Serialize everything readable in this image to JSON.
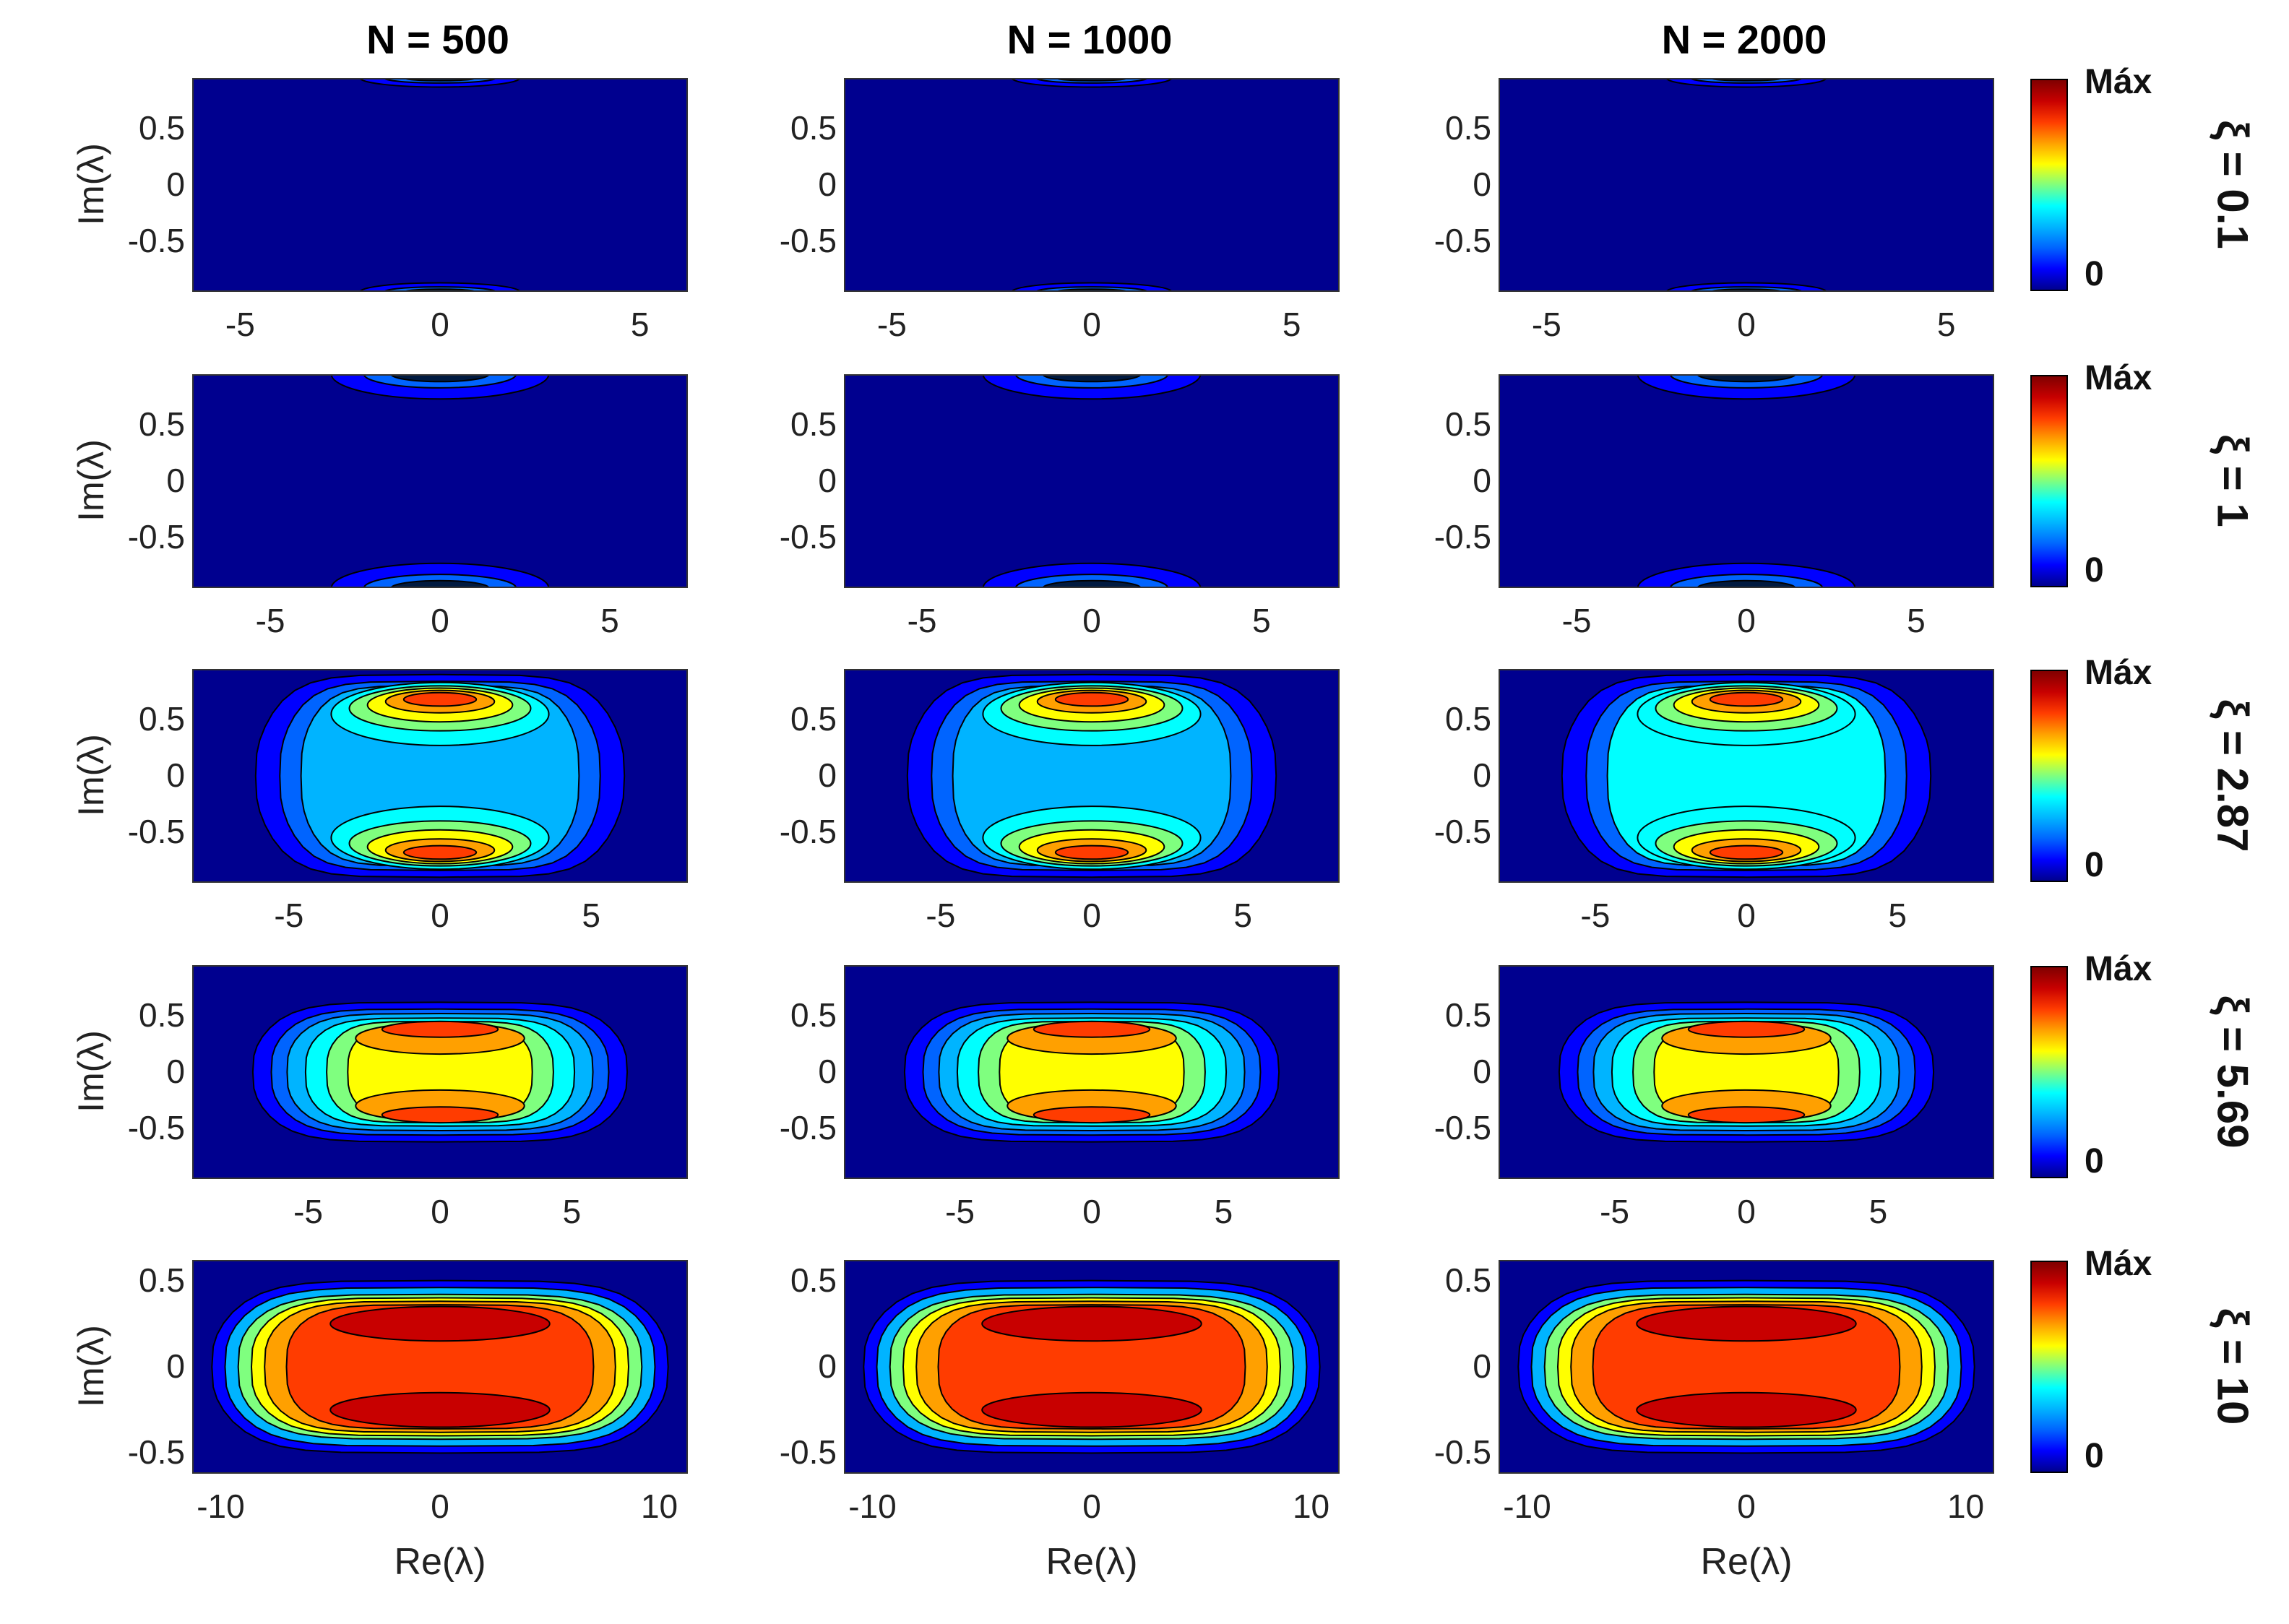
{
  "chart_data": {
    "type": "contour",
    "columns": [
      "N = 500",
      "N = 1000",
      "N = 2000"
    ],
    "rows": [
      {
        "label": "ξ = 0.1",
        "xticks": [
          "-5",
          "0",
          "5"
        ],
        "yticks": [
          "0.5",
          "0",
          "-0.5"
        ],
        "xlim": [
          -6.2,
          6.2
        ],
        "ylim": [
          -0.95,
          0.95
        ],
        "kind": "edge",
        "intensity": 0.15
      },
      {
        "label": "ξ = 1",
        "xticks": [
          "-5",
          "0",
          "5"
        ],
        "yticks": [
          "0.5",
          "0",
          "-0.5"
        ],
        "xlim": [
          -7.3,
          7.3
        ],
        "ylim": [
          -0.95,
          0.95
        ],
        "kind": "edge",
        "intensity": 0.3
      },
      {
        "label": "ξ = 2.87",
        "xticks": [
          "-5",
          "0",
          "5"
        ],
        "yticks": [
          "0.5",
          "0",
          "-0.5"
        ],
        "xlim": [
          -8.2,
          8.2
        ],
        "ylim": [
          -0.95,
          0.95
        ],
        "kind": "twolobe",
        "intensity": 0.55
      },
      {
        "label": "ξ = 5.69",
        "xticks": [
          "-5",
          "0",
          "5"
        ],
        "yticks": [
          "0.5",
          "0",
          "-0.5"
        ],
        "xlim": [
          -9.4,
          9.4
        ],
        "ylim": [
          -0.95,
          0.95
        ],
        "kind": "broad",
        "intensity": 0.75
      },
      {
        "label": "ξ = 10",
        "xticks": [
          "-10",
          "0",
          "10"
        ],
        "yticks": [
          "0.5",
          "0",
          "-0.5"
        ],
        "xlim": [
          -11.3,
          11.3
        ],
        "ylim": [
          -0.62,
          0.62
        ],
        "kind": "plateau",
        "intensity": 1.0
      }
    ],
    "xlabel": "Re(λ)",
    "ylabel": "Im(λ)",
    "colorbar": {
      "max_label": "Máx",
      "min_label": "0",
      "colormap": "jet"
    }
  }
}
